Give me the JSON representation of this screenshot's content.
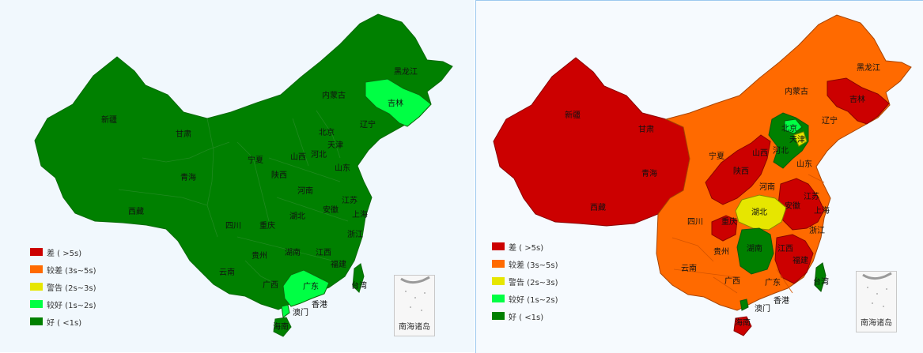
{
  "colors": {
    "poor": "#cc0000",
    "weak": "#ff6a00",
    "warning": "#e6e600",
    "ok": "#00ff44",
    "good": "#008000"
  },
  "legend": [
    {
      "key": "poor",
      "label": "差 ( >5s)"
    },
    {
      "key": "weak",
      "label": "较差 (3s~5s)"
    },
    {
      "key": "warning",
      "label": "警告 (2s~3s)"
    },
    {
      "key": "ok",
      "label": "较好 (1s~2s)"
    },
    {
      "key": "good",
      "label": "好 ( <1s)"
    }
  ],
  "inset_title": "南海诸岛",
  "maps": [
    {
      "default_status": "good",
      "provinces": [
        {
          "name": "新疆",
          "status": "good"
        },
        {
          "name": "西藏",
          "status": "good"
        },
        {
          "name": "青海",
          "status": "good"
        },
        {
          "name": "甘肃",
          "status": "good"
        },
        {
          "name": "内蒙古",
          "status": "good"
        },
        {
          "name": "黑龙江",
          "status": "good"
        },
        {
          "name": "吉林",
          "status": "ok"
        },
        {
          "name": "辽宁",
          "status": "good"
        },
        {
          "name": "北京",
          "status": "good"
        },
        {
          "name": "天津",
          "status": "good"
        },
        {
          "name": "河北",
          "status": "good"
        },
        {
          "name": "山西",
          "status": "good"
        },
        {
          "name": "宁夏",
          "status": "good"
        },
        {
          "name": "陕西",
          "status": "good"
        },
        {
          "name": "山东",
          "status": "good"
        },
        {
          "name": "河南",
          "status": "good"
        },
        {
          "name": "江苏",
          "status": "good"
        },
        {
          "name": "上海",
          "status": "good"
        },
        {
          "name": "安徽",
          "status": "good"
        },
        {
          "name": "湖北",
          "status": "good"
        },
        {
          "name": "四川",
          "status": "good"
        },
        {
          "name": "重庆",
          "status": "good"
        },
        {
          "name": "浙江",
          "status": "good"
        },
        {
          "name": "湖南",
          "status": "good"
        },
        {
          "name": "江西",
          "status": "good"
        },
        {
          "name": "贵州",
          "status": "good"
        },
        {
          "name": "福建",
          "status": "good"
        },
        {
          "name": "云南",
          "status": "good"
        },
        {
          "name": "广西",
          "status": "good"
        },
        {
          "name": "广东",
          "status": "ok"
        },
        {
          "name": "台湾",
          "status": "good"
        },
        {
          "name": "香港",
          "status": "good"
        },
        {
          "name": "澳门",
          "status": "ok"
        },
        {
          "name": "海南",
          "status": "good"
        }
      ]
    },
    {
      "default_status": "weak",
      "provinces": [
        {
          "name": "新疆",
          "status": "poor"
        },
        {
          "name": "西藏",
          "status": "poor"
        },
        {
          "name": "青海",
          "status": "poor"
        },
        {
          "name": "甘肃",
          "status": "poor"
        },
        {
          "name": "内蒙古",
          "status": "weak"
        },
        {
          "name": "黑龙江",
          "status": "weak"
        },
        {
          "name": "吉林",
          "status": "poor"
        },
        {
          "name": "辽宁",
          "status": "weak"
        },
        {
          "name": "北京",
          "status": "ok"
        },
        {
          "name": "天津",
          "status": "warning"
        },
        {
          "name": "河北",
          "status": "good"
        },
        {
          "name": "山西",
          "status": "poor"
        },
        {
          "name": "宁夏",
          "status": "weak"
        },
        {
          "name": "陕西",
          "status": "poor"
        },
        {
          "name": "山东",
          "status": "weak"
        },
        {
          "name": "河南",
          "status": "weak"
        },
        {
          "name": "江苏",
          "status": "poor"
        },
        {
          "name": "上海",
          "status": "poor"
        },
        {
          "name": "安徽",
          "status": "poor"
        },
        {
          "name": "湖北",
          "status": "warning"
        },
        {
          "name": "四川",
          "status": "weak"
        },
        {
          "name": "重庆",
          "status": "poor"
        },
        {
          "name": "浙江",
          "status": "weak"
        },
        {
          "name": "湖南",
          "status": "good"
        },
        {
          "name": "江西",
          "status": "poor"
        },
        {
          "name": "贵州",
          "status": "weak"
        },
        {
          "name": "福建",
          "status": "poor"
        },
        {
          "name": "云南",
          "status": "weak"
        },
        {
          "name": "广西",
          "status": "weak"
        },
        {
          "name": "广东",
          "status": "weak"
        },
        {
          "name": "台湾",
          "status": "good"
        },
        {
          "name": "香港",
          "status": "weak"
        },
        {
          "name": "澳门",
          "status": "good"
        },
        {
          "name": "海南",
          "status": "poor"
        }
      ]
    }
  ]
}
